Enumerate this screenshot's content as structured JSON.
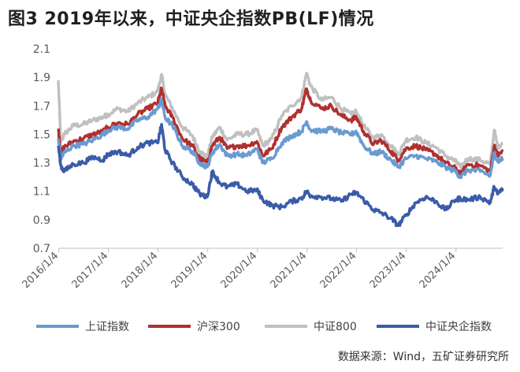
{
  "title": "图3  2019年以来，中证央企指数PB(LF)情况",
  "source": "数据来源：Wind，五矿证券研究所",
  "chart_data": {
    "type": "line",
    "title": "图3  2019年以来，中证央企指数PB(LF)情况",
    "xlabel": "",
    "ylabel": "",
    "ylim": [
      0.7,
      2.1
    ],
    "yticks": [
      "0.7",
      "0.9",
      "1.1",
      "1.3",
      "1.5",
      "1.7",
      "1.9",
      "2.1"
    ],
    "x_range": [
      2016.0,
      2024.95
    ],
    "xticks": [
      "2016/1/4",
      "2017/1/4",
      "2018/1/4",
      "2019/1/4",
      "2020/1/4",
      "2021/1/4",
      "2022/1/4",
      "2023/1/4",
      "2024/1/4"
    ],
    "legend_position": "bottom",
    "grid": false,
    "series": [
      {
        "name": "上证指数",
        "color": "#6a9bd0",
        "points": [
          [
            2016.0,
            1.47
          ],
          [
            2016.05,
            1.33
          ],
          [
            2016.12,
            1.37
          ],
          [
            2016.3,
            1.42
          ],
          [
            2016.5,
            1.43
          ],
          [
            2016.7,
            1.46
          ],
          [
            2016.9,
            1.5
          ],
          [
            2017.0,
            1.53
          ],
          [
            2017.2,
            1.55
          ],
          [
            2017.4,
            1.54
          ],
          [
            2017.6,
            1.6
          ],
          [
            2017.8,
            1.62
          ],
          [
            2018.0,
            1.68
          ],
          [
            2018.08,
            1.74
          ],
          [
            2018.15,
            1.62
          ],
          [
            2018.3,
            1.56
          ],
          [
            2018.5,
            1.42
          ],
          [
            2018.7,
            1.38
          ],
          [
            2018.85,
            1.3
          ],
          [
            2019.0,
            1.27
          ],
          [
            2019.1,
            1.37
          ],
          [
            2019.25,
            1.43
          ],
          [
            2019.4,
            1.35
          ],
          [
            2019.6,
            1.36
          ],
          [
            2019.8,
            1.35
          ],
          [
            2020.0,
            1.4
          ],
          [
            2020.12,
            1.3
          ],
          [
            2020.3,
            1.33
          ],
          [
            2020.5,
            1.44
          ],
          [
            2020.7,
            1.49
          ],
          [
            2020.9,
            1.52
          ],
          [
            2021.0,
            1.59
          ],
          [
            2021.08,
            1.53
          ],
          [
            2021.3,
            1.52
          ],
          [
            2021.5,
            1.54
          ],
          [
            2021.7,
            1.51
          ],
          [
            2021.9,
            1.5
          ],
          [
            2022.0,
            1.52
          ],
          [
            2022.15,
            1.42
          ],
          [
            2022.35,
            1.36
          ],
          [
            2022.5,
            1.38
          ],
          [
            2022.7,
            1.32
          ],
          [
            2022.85,
            1.27
          ],
          [
            2023.0,
            1.33
          ],
          [
            2023.2,
            1.35
          ],
          [
            2023.4,
            1.33
          ],
          [
            2023.6,
            1.31
          ],
          [
            2023.8,
            1.27
          ],
          [
            2024.0,
            1.24
          ],
          [
            2024.1,
            1.2
          ],
          [
            2024.25,
            1.25
          ],
          [
            2024.5,
            1.24
          ],
          [
            2024.7,
            1.21
          ],
          [
            2024.78,
            1.37
          ],
          [
            2024.85,
            1.31
          ],
          [
            2024.95,
            1.33
          ]
        ]
      },
      {
        "name": "沪深300",
        "color": "#b03030",
        "points": [
          [
            2016.0,
            1.54
          ],
          [
            2016.05,
            1.37
          ],
          [
            2016.12,
            1.41
          ],
          [
            2016.3,
            1.45
          ],
          [
            2016.5,
            1.47
          ],
          [
            2016.7,
            1.5
          ],
          [
            2016.9,
            1.52
          ],
          [
            2017.0,
            1.55
          ],
          [
            2017.2,
            1.58
          ],
          [
            2017.4,
            1.57
          ],
          [
            2017.6,
            1.64
          ],
          [
            2017.8,
            1.68
          ],
          [
            2018.0,
            1.72
          ],
          [
            2018.08,
            1.82
          ],
          [
            2018.15,
            1.7
          ],
          [
            2018.3,
            1.62
          ],
          [
            2018.5,
            1.47
          ],
          [
            2018.7,
            1.42
          ],
          [
            2018.85,
            1.33
          ],
          [
            2019.0,
            1.3
          ],
          [
            2019.1,
            1.42
          ],
          [
            2019.25,
            1.48
          ],
          [
            2019.4,
            1.4
          ],
          [
            2019.6,
            1.42
          ],
          [
            2019.8,
            1.42
          ],
          [
            2020.0,
            1.45
          ],
          [
            2020.12,
            1.35
          ],
          [
            2020.3,
            1.4
          ],
          [
            2020.5,
            1.55
          ],
          [
            2020.7,
            1.62
          ],
          [
            2020.9,
            1.68
          ],
          [
            2021.0,
            1.82
          ],
          [
            2021.08,
            1.74
          ],
          [
            2021.3,
            1.68
          ],
          [
            2021.5,
            1.7
          ],
          [
            2021.7,
            1.63
          ],
          [
            2021.9,
            1.6
          ],
          [
            2022.0,
            1.62
          ],
          [
            2022.15,
            1.52
          ],
          [
            2022.35,
            1.43
          ],
          [
            2022.5,
            1.46
          ],
          [
            2022.7,
            1.38
          ],
          [
            2022.85,
            1.32
          ],
          [
            2023.0,
            1.4
          ],
          [
            2023.2,
            1.42
          ],
          [
            2023.4,
            1.39
          ],
          [
            2023.6,
            1.36
          ],
          [
            2023.8,
            1.3
          ],
          [
            2024.0,
            1.26
          ],
          [
            2024.1,
            1.22
          ],
          [
            2024.25,
            1.29
          ],
          [
            2024.5,
            1.28
          ],
          [
            2024.7,
            1.24
          ],
          [
            2024.78,
            1.42
          ],
          [
            2024.85,
            1.35
          ],
          [
            2024.95,
            1.38
          ]
        ]
      },
      {
        "name": "中证800",
        "color": "#c0c0c0",
        "points": [
          [
            2016.0,
            1.88
          ],
          [
            2016.05,
            1.45
          ],
          [
            2016.12,
            1.5
          ],
          [
            2016.3,
            1.56
          ],
          [
            2016.5,
            1.57
          ],
          [
            2016.7,
            1.6
          ],
          [
            2016.9,
            1.62
          ],
          [
            2017.0,
            1.64
          ],
          [
            2017.2,
            1.68
          ],
          [
            2017.4,
            1.66
          ],
          [
            2017.6,
            1.72
          ],
          [
            2017.8,
            1.76
          ],
          [
            2018.0,
            1.8
          ],
          [
            2018.08,
            1.92
          ],
          [
            2018.15,
            1.78
          ],
          [
            2018.3,
            1.68
          ],
          [
            2018.5,
            1.55
          ],
          [
            2018.7,
            1.49
          ],
          [
            2018.85,
            1.38
          ],
          [
            2019.0,
            1.34
          ],
          [
            2019.1,
            1.48
          ],
          [
            2019.25,
            1.55
          ],
          [
            2019.4,
            1.46
          ],
          [
            2019.6,
            1.5
          ],
          [
            2019.8,
            1.5
          ],
          [
            2020.0,
            1.53
          ],
          [
            2020.12,
            1.42
          ],
          [
            2020.3,
            1.47
          ],
          [
            2020.5,
            1.63
          ],
          [
            2020.7,
            1.7
          ],
          [
            2020.9,
            1.76
          ],
          [
            2021.0,
            1.93
          ],
          [
            2021.08,
            1.84
          ],
          [
            2021.3,
            1.74
          ],
          [
            2021.5,
            1.76
          ],
          [
            2021.7,
            1.68
          ],
          [
            2021.9,
            1.64
          ],
          [
            2022.0,
            1.66
          ],
          [
            2022.15,
            1.56
          ],
          [
            2022.35,
            1.47
          ],
          [
            2022.5,
            1.5
          ],
          [
            2022.7,
            1.42
          ],
          [
            2022.85,
            1.36
          ],
          [
            2023.0,
            1.46
          ],
          [
            2023.2,
            1.48
          ],
          [
            2023.4,
            1.44
          ],
          [
            2023.6,
            1.41
          ],
          [
            2023.8,
            1.35
          ],
          [
            2024.0,
            1.31
          ],
          [
            2024.1,
            1.27
          ],
          [
            2024.25,
            1.33
          ],
          [
            2024.5,
            1.32
          ],
          [
            2024.7,
            1.29
          ],
          [
            2024.78,
            1.53
          ],
          [
            2024.85,
            1.41
          ],
          [
            2024.95,
            1.44
          ]
        ]
      },
      {
        "name": "中证央企指数",
        "color": "#3a5ca8",
        "points": [
          [
            2016.0,
            1.42
          ],
          [
            2016.05,
            1.28
          ],
          [
            2016.12,
            1.24
          ],
          [
            2016.3,
            1.29
          ],
          [
            2016.5,
            1.3
          ],
          [
            2016.7,
            1.34
          ],
          [
            2016.9,
            1.32
          ],
          [
            2017.0,
            1.36
          ],
          [
            2017.2,
            1.38
          ],
          [
            2017.4,
            1.35
          ],
          [
            2017.6,
            1.41
          ],
          [
            2017.8,
            1.44
          ],
          [
            2018.0,
            1.44
          ],
          [
            2018.08,
            1.57
          ],
          [
            2018.15,
            1.39
          ],
          [
            2018.3,
            1.3
          ],
          [
            2018.5,
            1.2
          ],
          [
            2018.7,
            1.15
          ],
          [
            2018.85,
            1.08
          ],
          [
            2019.0,
            1.06
          ],
          [
            2019.1,
            1.24
          ],
          [
            2019.25,
            1.16
          ],
          [
            2019.4,
            1.13
          ],
          [
            2019.6,
            1.15
          ],
          [
            2019.8,
            1.1
          ],
          [
            2020.0,
            1.11
          ],
          [
            2020.12,
            1.04
          ],
          [
            2020.3,
            1.0
          ],
          [
            2020.5,
            0.99
          ],
          [
            2020.7,
            1.03
          ],
          [
            2020.9,
            1.05
          ],
          [
            2021.0,
            1.1
          ],
          [
            2021.08,
            1.07
          ],
          [
            2021.3,
            1.06
          ],
          [
            2021.5,
            1.05
          ],
          [
            2021.7,
            1.03
          ],
          [
            2021.9,
            1.08
          ],
          [
            2022.0,
            1.09
          ],
          [
            2022.15,
            1.04
          ],
          [
            2022.35,
            0.97
          ],
          [
            2022.5,
            0.95
          ],
          [
            2022.7,
            0.91
          ],
          [
            2022.85,
            0.86
          ],
          [
            2023.0,
            0.93
          ],
          [
            2023.2,
            1.02
          ],
          [
            2023.4,
            1.06
          ],
          [
            2023.6,
            1.03
          ],
          [
            2023.8,
            0.97
          ],
          [
            2024.0,
            1.04
          ],
          [
            2024.1,
            1.05
          ],
          [
            2024.25,
            1.04
          ],
          [
            2024.5,
            1.06
          ],
          [
            2024.7,
            1.02
          ],
          [
            2024.78,
            1.13
          ],
          [
            2024.85,
            1.08
          ],
          [
            2024.95,
            1.12
          ]
        ]
      }
    ]
  }
}
